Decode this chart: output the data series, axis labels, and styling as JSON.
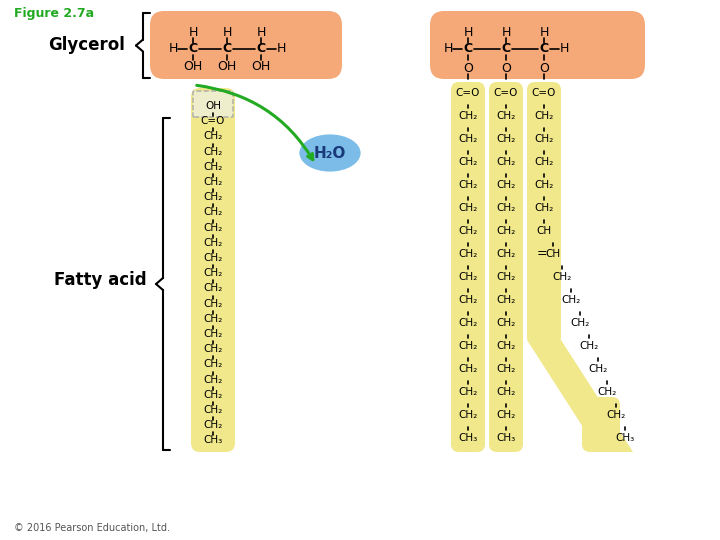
{
  "title": "Figure 2.7a",
  "title_color": "#22aa22",
  "glycerol_label": "Glycerol",
  "fatty_acid_label": "Fatty acid",
  "h2o_label": "H₂O",
  "copyright": "© 2016 Pearson Education, Ltd.",
  "glycerol_bg": "#f5a878",
  "fatty_acid_bg": "#f0e88a",
  "h2o_bg": "#7bbde8",
  "arrow_color": "#22aa22",
  "bg": "#ffffff",
  "chain_sat": [
    "C=O",
    "CH₂",
    "CH₂",
    "CH₂",
    "CH₂",
    "CH₂",
    "CH₂",
    "CH₂",
    "CH₂",
    "CH₂",
    "CH₂",
    "CH₂",
    "CH₂",
    "CH₂",
    "CH₂",
    "CH₃"
  ],
  "chain_unsat": [
    "C=O",
    "CH₂",
    "CH₂",
    "CH₂",
    "CH₂",
    "CH₂",
    "CH",
    "CH",
    "CH₂",
    "CH₂",
    "CH₂",
    "CH₂",
    "CH₂",
    "CH₂",
    "CH₂",
    "CH₃"
  ],
  "chain_left_full": [
    "OH",
    "C=O",
    "CH₂",
    "CH₂",
    "CH₂",
    "CH₂",
    "CH₂",
    "CH₂",
    "CH₂",
    "CH₂",
    "CH₂",
    "CH₂",
    "CH₂",
    "CH₂",
    "CH₂",
    "CH₂",
    "CH₂",
    "CH₂",
    "CH₂",
    "CH₂",
    "CH₂",
    "CH₂",
    "CH₃"
  ]
}
